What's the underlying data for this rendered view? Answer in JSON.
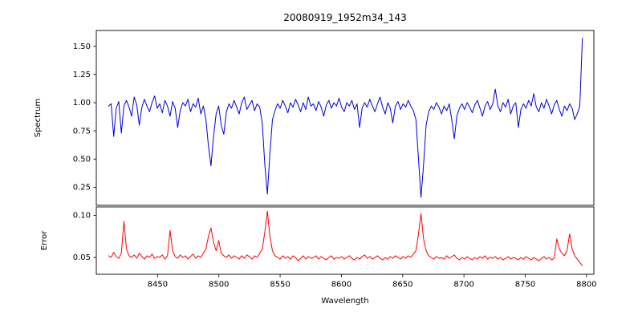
{
  "figure": {
    "title": "20080919_1952m34_143",
    "xlabel": "Wavelength",
    "background": "#ffffff",
    "spine_color": "#000000"
  },
  "chart_data": [
    {
      "type": "line",
      "name": "spectrum",
      "title": "20080919_1952m34_143",
      "ylabel": "Spectrum",
      "color": "#0000dd",
      "grid": false,
      "legend": "none",
      "xlim": [
        8400,
        8806
      ],
      "ylim": [
        0.09,
        1.64
      ],
      "yticks": [
        0.25,
        0.5,
        0.75,
        1.0,
        1.25,
        1.5
      ],
      "x_start": 8410,
      "x_step": 2.09,
      "notes": "flux continuum near 1.0 with absorption dips at ~8498, ~8542, ~8662 and an upward spike at the red end",
      "values": [
        0.97,
        0.99,
        0.7,
        0.95,
        1.01,
        0.73,
        0.97,
        1.02,
        0.96,
        0.88,
        1.05,
        0.98,
        0.8,
        0.96,
        1.03,
        0.97,
        0.92,
        1.0,
        1.06,
        0.95,
        0.99,
        0.91,
        1.02,
        0.97,
        0.88,
        1.01,
        0.95,
        0.78,
        0.93,
        1.0,
        0.97,
        1.03,
        0.92,
        0.99,
        0.96,
        1.04,
        0.9,
        0.97,
        0.85,
        0.62,
        0.44,
        0.7,
        0.9,
        0.97,
        0.8,
        0.72,
        0.92,
        0.99,
        0.95,
        1.02,
        0.96,
        0.9,
        1.0,
        1.05,
        0.94,
        0.98,
        1.02,
        0.93,
        0.99,
        0.96,
        0.82,
        0.45,
        0.19,
        0.55,
        0.85,
        0.93,
        0.99,
        0.95,
        1.02,
        0.97,
        0.91,
        1.0,
        0.96,
        1.03,
        0.98,
        0.92,
        1.0,
        0.94,
        1.05,
        0.97,
        0.99,
        0.93,
        1.01,
        0.96,
        0.88,
        0.98,
        1.02,
        0.95,
        1.0,
        0.97,
        1.04,
        0.96,
        0.92,
        1.0,
        0.97,
        1.02,
        0.94,
        0.99,
        0.78,
        0.95,
        1.0,
        0.96,
        1.03,
        0.97,
        0.92,
        0.99,
        1.05,
        0.96,
        0.9,
        1.0,
        0.95,
        0.82,
        0.97,
        1.01,
        0.94,
        0.99,
        0.96,
        1.02,
        0.97,
        0.93,
        0.85,
        0.5,
        0.16,
        0.45,
        0.8,
        0.92,
        0.97,
        0.94,
        1.0,
        0.96,
        0.9,
        0.97,
        0.93,
        0.99,
        0.85,
        0.68,
        0.88,
        0.95,
        0.99,
        0.94,
        1.0,
        0.96,
        0.91,
        0.98,
        1.02,
        0.95,
        0.88,
        0.97,
        1.01,
        0.94,
        0.99,
        1.12,
        0.97,
        0.92,
        1.0,
        0.96,
        1.03,
        0.9,
        0.97,
        1.0,
        0.78,
        0.94,
        0.99,
        0.95,
        1.02,
        0.97,
        1.08,
        0.96,
        0.92,
        1.0,
        0.95,
        1.03,
        0.97,
        0.9,
        0.98,
        1.02,
        0.94,
        0.88,
        0.97,
        0.93,
        0.99,
        0.95,
        0.85,
        0.9,
        0.97,
        1.57
      ]
    },
    {
      "type": "line",
      "name": "error",
      "ylabel": "Error",
      "xlabel": "Wavelength",
      "color": "#ff0000",
      "grid": false,
      "legend": "none",
      "xlim": [
        8400,
        8806
      ],
      "ylim": [
        0.03,
        0.11
      ],
      "yticks": [
        0.05,
        0.1
      ],
      "xticks": [
        8450,
        8500,
        8550,
        8600,
        8650,
        8700,
        8750,
        8800
      ],
      "x_start": 8410,
      "x_step": 2.09,
      "notes": "error baseline ~0.05 with peaks aligned to absorption features",
      "values": [
        0.052,
        0.05,
        0.056,
        0.051,
        0.049,
        0.055,
        0.093,
        0.06,
        0.052,
        0.05,
        0.053,
        0.049,
        0.055,
        0.051,
        0.048,
        0.052,
        0.05,
        0.054,
        0.049,
        0.051,
        0.05,
        0.053,
        0.048,
        0.052,
        0.082,
        0.058,
        0.051,
        0.049,
        0.053,
        0.05,
        0.052,
        0.048,
        0.051,
        0.054,
        0.049,
        0.052,
        0.05,
        0.055,
        0.06,
        0.075,
        0.085,
        0.068,
        0.058,
        0.07,
        0.055,
        0.052,
        0.05,
        0.053,
        0.049,
        0.052,
        0.05,
        0.048,
        0.052,
        0.049,
        0.053,
        0.051,
        0.048,
        0.052,
        0.05,
        0.055,
        0.06,
        0.08,
        0.105,
        0.075,
        0.058,
        0.052,
        0.05,
        0.048,
        0.052,
        0.049,
        0.051,
        0.048,
        0.052,
        0.05,
        0.046,
        0.049,
        0.052,
        0.048,
        0.051,
        0.049,
        0.05,
        0.052,
        0.048,
        0.051,
        0.049,
        0.047,
        0.05,
        0.052,
        0.048,
        0.05,
        0.049,
        0.051,
        0.048,
        0.05,
        0.052,
        0.049,
        0.047,
        0.05,
        0.048,
        0.051,
        0.053,
        0.049,
        0.051,
        0.048,
        0.05,
        0.052,
        0.049,
        0.047,
        0.05,
        0.048,
        0.051,
        0.049,
        0.052,
        0.05,
        0.048,
        0.051,
        0.049,
        0.052,
        0.05,
        0.054,
        0.058,
        0.078,
        0.102,
        0.072,
        0.058,
        0.052,
        0.05,
        0.048,
        0.051,
        0.049,
        0.05,
        0.048,
        0.052,
        0.049,
        0.051,
        0.053,
        0.049,
        0.047,
        0.05,
        0.048,
        0.051,
        0.049,
        0.047,
        0.05,
        0.048,
        0.051,
        0.049,
        0.052,
        0.048,
        0.05,
        0.049,
        0.051,
        0.048,
        0.05,
        0.047,
        0.049,
        0.051,
        0.048,
        0.05,
        0.049,
        0.047,
        0.05,
        0.048,
        0.051,
        0.049,
        0.047,
        0.05,
        0.048,
        0.046,
        0.049,
        0.051,
        0.048,
        0.05,
        0.047,
        0.049,
        0.072,
        0.06,
        0.055,
        0.052,
        0.058,
        0.078,
        0.06,
        0.052,
        0.048,
        0.044,
        0.04
      ]
    }
  ]
}
